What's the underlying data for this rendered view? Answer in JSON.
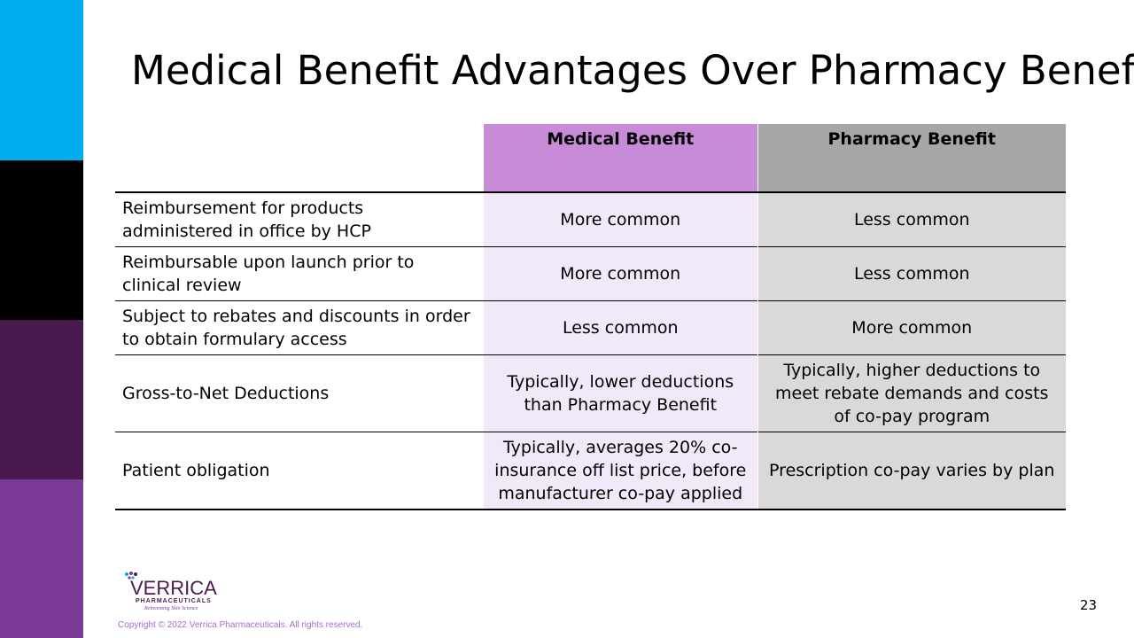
{
  "slide": {
    "title": "Medical Benefit Advantages Over Pharmacy Benefit",
    "page_number": "23",
    "copyright": "Copyright © 2022 Verrica Pharmaceuticals. All rights reserved."
  },
  "logo": {
    "name": "VERRICA",
    "subtitle": "PHARMACEUTICALS",
    "tagline": "Reinventing Skin Science"
  },
  "table": {
    "headers": [
      "",
      "Medical Benefit",
      "Pharmacy Benefit"
    ],
    "rows": [
      [
        "Reimbursement for products administered in office by HCP",
        "More common",
        "Less common"
      ],
      [
        "Reimbursable upon launch prior to clinical review",
        "More common",
        "Less common"
      ],
      [
        "Subject to rebates and discounts in order to obtain formulary access",
        "Less common",
        "More common"
      ],
      [
        "Gross-to-Net Deductions",
        "Typically, lower deductions than Pharmacy Benefit",
        "Typically, higher deductions to meet rebate demands and costs of co-pay program"
      ],
      [
        "Patient obligation",
        "Typically, averages 20% co-insurance off list price, before manufacturer co-pay applied",
        "Prescription co-pay varies by plan"
      ]
    ]
  },
  "colors": {
    "bar_cyan": "#00aeef",
    "bar_black": "#000000",
    "bar_dark_purple": "#4a1a4e",
    "bar_purple": "#7b3a96",
    "medical_header": "#c78bd8",
    "pharmacy_header": "#a6a6a6",
    "medical_cell": "#f1e9f9",
    "pharmacy_cell": "#d9d9d9"
  }
}
